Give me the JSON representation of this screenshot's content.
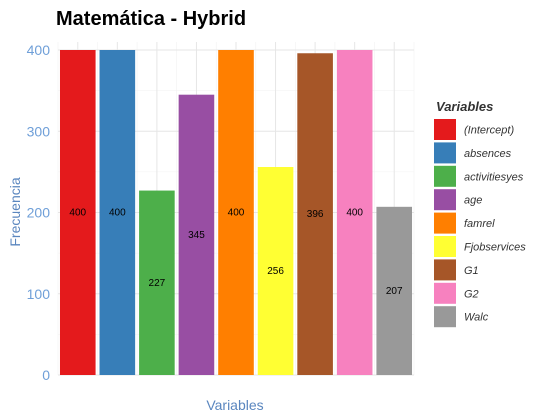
{
  "chart_data": {
    "type": "bar",
    "title": "Matemática - Hybrid",
    "xlabel": "Variables",
    "ylabel": "Frecuencia",
    "ylim": [
      0,
      400
    ],
    "yticks": [
      "0",
      "100",
      "200",
      "300",
      "400"
    ],
    "grid": true,
    "legend": {
      "title": "Variables",
      "placement": "right"
    },
    "categories": [
      "(Intercept)",
      "absences",
      "activitiesyes",
      "age",
      "famrel",
      "Fjobservices",
      "G1",
      "G2",
      "Walc"
    ],
    "values": [
      400,
      400,
      227,
      345,
      400,
      256,
      396,
      400,
      207
    ],
    "colors": [
      "#e41a1c",
      "#377eb8",
      "#4daf4a",
      "#984ea3",
      "#ff7f00",
      "#ffff33",
      "#a65628",
      "#f781bf",
      "#999999"
    ]
  }
}
